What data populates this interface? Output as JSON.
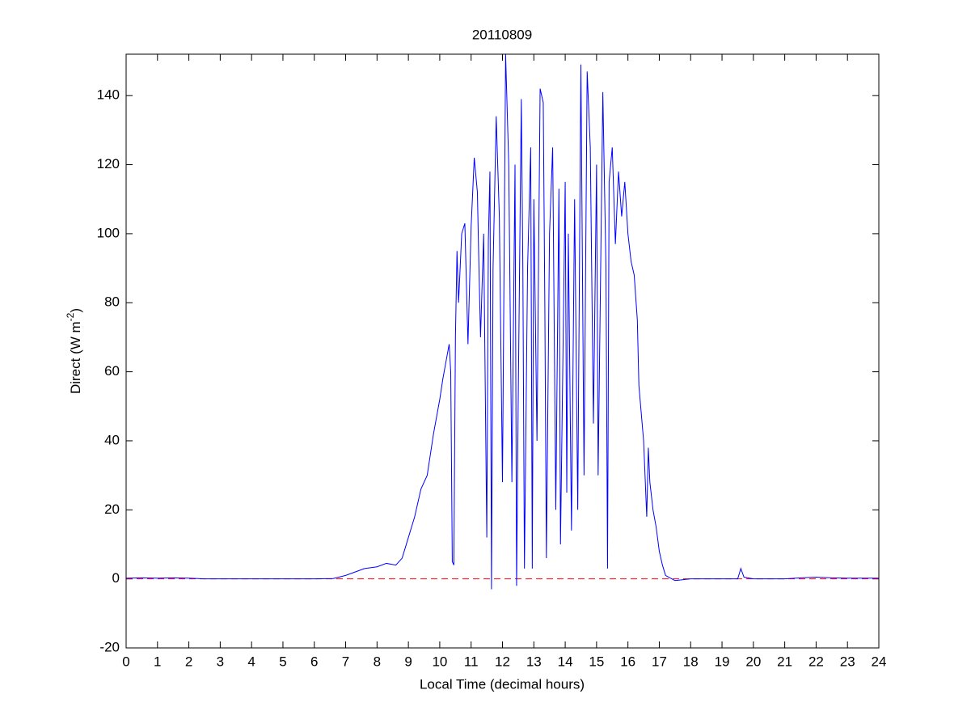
{
  "chart_data": {
    "type": "line",
    "title": "20110809",
    "xlabel": "Local Time (decimal hours)",
    "ylabel_parts": [
      "Direct (W m",
      "-2",
      ")"
    ],
    "xlim": [
      0,
      24
    ],
    "xticks": [
      0,
      1,
      2,
      3,
      4,
      5,
      6,
      7,
      8,
      9,
      10,
      11,
      12,
      13,
      14,
      15,
      16,
      17,
      18,
      19,
      20,
      21,
      22,
      23,
      24
    ],
    "ylim": [
      -20,
      152
    ],
    "yticks": [
      -20,
      0,
      20,
      40,
      60,
      80,
      100,
      120,
      140
    ],
    "hlines": [
      {
        "y": 0,
        "color": "#ff0000",
        "style": "dashed"
      }
    ],
    "series": [
      {
        "color": "#0000ff",
        "x": [
          0,
          0.5,
          1,
          1.5,
          2,
          2.5,
          3,
          4,
          5,
          6,
          6.6,
          7,
          7.3,
          7.6,
          8,
          8.3,
          8.6,
          8.8,
          9,
          9.2,
          9.4,
          9.6,
          9.8,
          10,
          10.1,
          10.2,
          10.3,
          10.35,
          10.4,
          10.45,
          10.5,
          10.55,
          10.6,
          10.7,
          10.8,
          10.9,
          11,
          11.1,
          11.2,
          11.25,
          11.3,
          11.4,
          11.5,
          11.55,
          11.6,
          11.65,
          11.7,
          11.8,
          11.9,
          12,
          12.1,
          12.2,
          12.3,
          12.4,
          12.45,
          12.5,
          12.6,
          12.65,
          12.7,
          12.8,
          12.9,
          12.95,
          13,
          13.1,
          13.2,
          13.3,
          13.35,
          13.4,
          13.5,
          13.6,
          13.7,
          13.8,
          13.85,
          14,
          14.05,
          14.1,
          14.2,
          14.3,
          14.4,
          14.5,
          14.6,
          14.7,
          14.8,
          14.9,
          15,
          15.05,
          15.2,
          15.3,
          15.35,
          15.4,
          15.5,
          15.6,
          15.7,
          15.8,
          15.9,
          16,
          16.1,
          16.2,
          16.3,
          16.35,
          16.5,
          16.6,
          16.65,
          16.7,
          16.8,
          16.9,
          17,
          17.1,
          17.2,
          17.3,
          17.5,
          18,
          19,
          19.5,
          19.6,
          19.7,
          20,
          21,
          21.5,
          22,
          22.5,
          23,
          24
        ],
        "values": [
          0.2,
          0.3,
          0.2,
          0.3,
          0.2,
          0,
          0,
          0,
          0,
          0,
          0.1,
          1,
          2,
          3,
          3.5,
          4.5,
          4,
          6,
          12,
          18,
          26,
          30,
          42,
          52,
          58,
          63,
          68,
          60,
          5,
          4,
          70,
          95,
          80,
          100,
          103,
          68,
          102,
          122,
          112,
          90,
          70,
          100,
          12,
          98,
          118,
          -3,
          90,
          134,
          105,
          28,
          152,
          120,
          28,
          120,
          -2,
          50,
          139,
          90,
          3,
          90,
          125,
          3,
          110,
          40,
          142,
          138,
          80,
          6,
          100,
          125,
          20,
          113,
          10,
          115,
          25,
          100,
          14,
          110,
          20,
          149,
          30,
          147,
          125,
          45,
          120,
          30,
          141,
          90,
          3,
          115,
          125,
          97,
          118,
          105,
          115,
          100,
          92,
          88,
          75,
          56,
          40,
          18,
          38,
          28,
          20,
          15,
          8,
          4,
          1,
          0.5,
          -0.5,
          0,
          0,
          0,
          3,
          0.5,
          0,
          0,
          0.3,
          0.5,
          0.3,
          0.2,
          0.2
        ]
      }
    ]
  }
}
